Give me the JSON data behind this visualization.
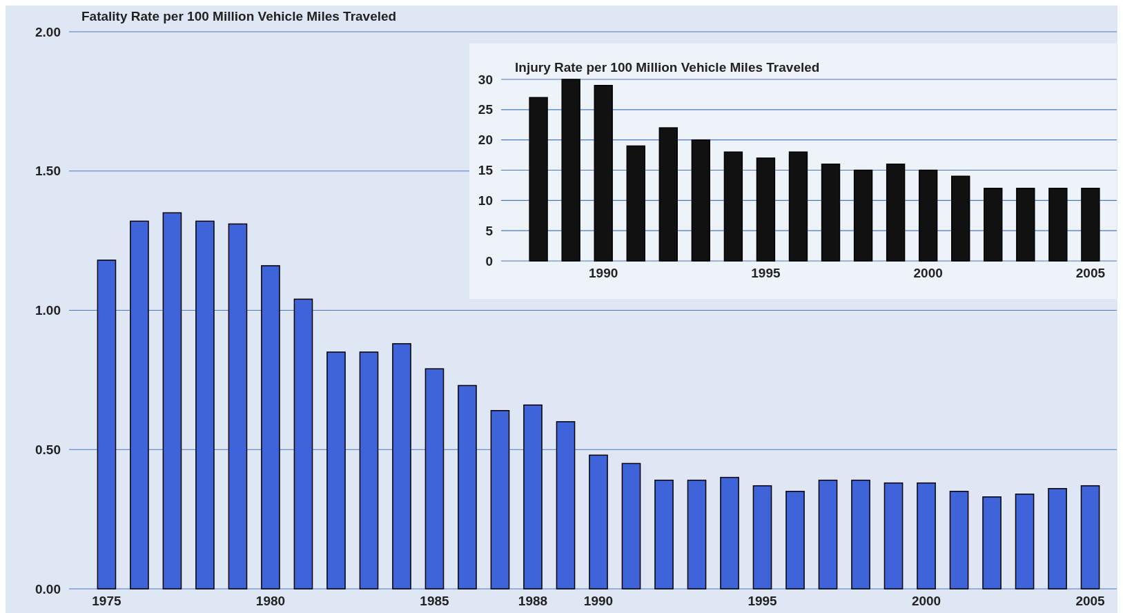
{
  "chart_data": [
    {
      "type": "bar",
      "title": "Fatality Rate per 100 Million Vehicle Miles Traveled",
      "categories": [
        "1975",
        null,
        null,
        null,
        null,
        "1980",
        null,
        null,
        null,
        null,
        "1985",
        null,
        null,
        "1988",
        null,
        "1990",
        null,
        null,
        null,
        null,
        "1995",
        null,
        null,
        null,
        null,
        "2000",
        null,
        null,
        null,
        null,
        "2005"
      ],
      "values": [
        1.18,
        1.32,
        1.35,
        1.32,
        1.31,
        1.16,
        1.04,
        0.85,
        0.85,
        0.88,
        0.79,
        0.73,
        0.64,
        0.66,
        0.6,
        0.48,
        0.45,
        0.39,
        0.39,
        0.4,
        0.37,
        0.35,
        0.39,
        0.39,
        0.38,
        0.38,
        0.35,
        0.33,
        0.34,
        0.36,
        0.37
      ],
      "color": "#3f63d8",
      "ylim": [
        0,
        2
      ],
      "yticks": [
        {
          "value": 0,
          "label": "0.00"
        },
        {
          "value": 0.5,
          "label": "0.50"
        },
        {
          "value": 1,
          "label": "1.00"
        },
        {
          "value": 1.5,
          "label": "1.50"
        },
        {
          "value": 2,
          "label": "2.00"
        }
      ],
      "grid": "y"
    },
    {
      "type": "bar",
      "title": "Injury Rate per 100 Million Vehicle Miles Traveled",
      "categories": [
        null,
        null,
        "1990",
        null,
        null,
        null,
        null,
        "1995",
        null,
        null,
        null,
        null,
        "2000",
        null,
        null,
        null,
        null,
        "2005"
      ],
      "values": [
        27,
        30,
        29,
        19,
        22,
        20,
        18,
        17,
        18,
        16,
        15,
        16,
        15,
        14,
        12,
        12,
        12,
        12
      ],
      "color": "#111111",
      "ylim": [
        0,
        30
      ],
      "yticks": [
        0,
        5,
        10,
        15,
        20,
        25,
        30
      ],
      "grid": "y"
    }
  ]
}
